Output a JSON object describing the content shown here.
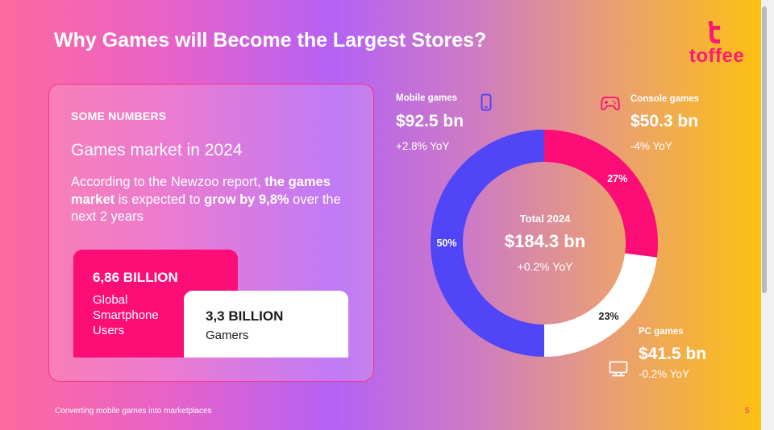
{
  "slide": {
    "title": "Why Games will Become the Largest Stores?",
    "logo_text": "toffee",
    "footer": "Converting mobile games into marketplaces",
    "page_number": "5"
  },
  "card": {
    "eyebrow": "SOME NUMBERS",
    "heading": "Games market in 2024",
    "body": {
      "part1": "According to the Newzoo report, ",
      "bold1": "the games market",
      "part2": " is expected to ",
      "bold2": "grow by 9,8%",
      "part3": " over the next 2 years"
    },
    "stats": [
      {
        "value": "6,86 BILLION",
        "label": "Global Smartphone Users"
      },
      {
        "value": "3,3 BILLION",
        "label": "Gamers"
      }
    ]
  },
  "market": {
    "total_label": "Total 2024",
    "total_value": "$184.3 bn",
    "total_yoy": "+0.2% YoY",
    "segments": [
      {
        "name": "Mobile games",
        "value": "$92.5 bn",
        "yoy": "+2.8% YoY",
        "percent": 50,
        "percent_label": "50%",
        "color": "#5046f7",
        "icon": "smartphone-icon"
      },
      {
        "name": "Console games",
        "value": "$50.3 bn",
        "yoy": "-4% YoY",
        "percent": 27,
        "percent_label": "27%",
        "color": "#fc0e76",
        "icon": "gamepad-icon"
      },
      {
        "name": "PC games",
        "value": "$41.5 bn",
        "yoy": "-0.2% YoY",
        "percent": 23,
        "percent_label": "23%",
        "color": "#ffffff",
        "icon": "monitor-icon"
      }
    ]
  }
}
